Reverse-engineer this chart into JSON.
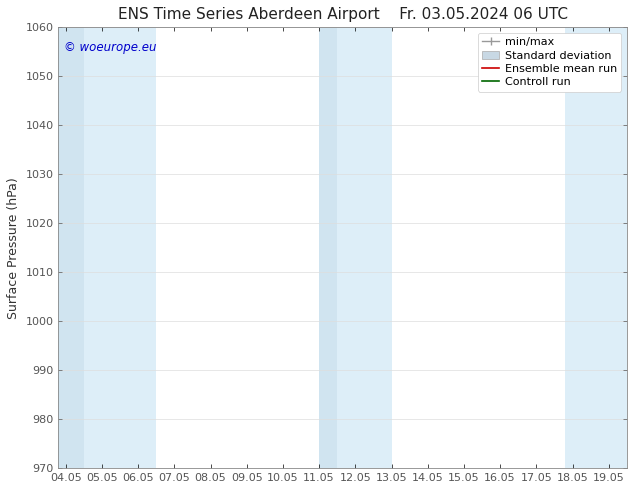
{
  "title": "ENS Time Series Aberdeen Airport",
  "title_right": "Fr. 03.05.2024 06 UTC",
  "ylabel": "Surface Pressure (hPa)",
  "ylim": [
    970,
    1060
  ],
  "yticks": [
    970,
    980,
    990,
    1000,
    1010,
    1020,
    1030,
    1040,
    1050,
    1060
  ],
  "xlim_start": 3.8,
  "xlim_end": 19.5,
  "xtick_labels": [
    "04.05",
    "05.05",
    "06.05",
    "07.05",
    "08.05",
    "09.05",
    "10.05",
    "11.05",
    "12.05",
    "13.05",
    "14.05",
    "15.05",
    "16.05",
    "17.05",
    "18.05",
    "19.05"
  ],
  "xtick_positions": [
    4.0,
    5.0,
    6.0,
    7.0,
    8.0,
    9.0,
    10.0,
    11.0,
    12.0,
    13.0,
    14.0,
    15.0,
    16.0,
    17.0,
    18.0,
    19.0
  ],
  "shaded_bands": [
    {
      "x_start": 3.8,
      "x_end": 4.5,
      "color": "#d0e4f0"
    },
    {
      "x_start": 4.5,
      "x_end": 6.5,
      "color": "#ddeef8"
    },
    {
      "x_start": 11.0,
      "x_end": 11.5,
      "color": "#d0e4f0"
    },
    {
      "x_start": 11.5,
      "x_end": 13.0,
      "color": "#ddeef8"
    },
    {
      "x_start": 17.8,
      "x_end": 19.5,
      "color": "#ddeef8"
    }
  ],
  "watermark": "© woeurope.eu",
  "watermark_color": "#0000cc",
  "legend_items": [
    {
      "label": "min/max",
      "color": "#999999"
    },
    {
      "label": "Standard deviation",
      "color": "#c8d8e4"
    },
    {
      "label": "Ensemble mean run",
      "color": "#cc0000"
    },
    {
      "label": "Controll run",
      "color": "#006600"
    }
  ],
  "background_color": "#ffffff",
  "plot_bg_color": "#ffffff",
  "spine_color": "#888888",
  "tick_color": "#555555",
  "title_fontsize": 11,
  "axis_label_fontsize": 9,
  "tick_fontsize": 8,
  "legend_fontsize": 8
}
